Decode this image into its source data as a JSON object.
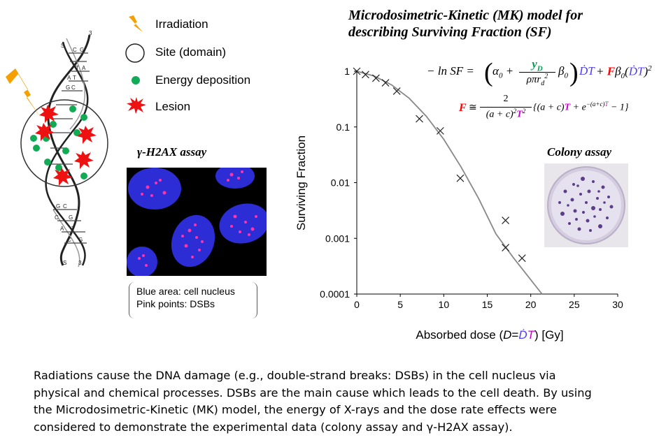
{
  "legend": {
    "items": [
      {
        "label": "Irradiation",
        "icon": "lightning-bolt-icon"
      },
      {
        "label": "Site (domain)",
        "icon": "circle-icon"
      },
      {
        "label": "Energy deposition",
        "icon": "green-dot-icon"
      },
      {
        "label": "Lesion",
        "icon": "red-star-icon"
      }
    ]
  },
  "dna": {
    "strand_labels": [
      "S",
      "3",
      "S",
      "3"
    ],
    "bases_top": [
      "C",
      "G",
      "T",
      "A",
      "A",
      "T",
      "G",
      "C"
    ],
    "bases_bottom": [
      "G",
      "C",
      "C",
      "G",
      "A",
      "T",
      "C",
      "G"
    ]
  },
  "h2ax": {
    "title": "γ-H2AX assay",
    "note_line1": "Blue area: cell nucleus",
    "note_line2": "Pink points: DSBs"
  },
  "model": {
    "title_line1": "Microdosimetric-Kinetic (MK) model for",
    "title_line2": "describing Surviving Fraction (SF)"
  },
  "colony": {
    "title": "Colony assay"
  },
  "colors": {
    "lesion": "#ee1111",
    "energy": "#11aa55",
    "bolt": "#f5a000",
    "curve": "#888888",
    "nucleus": "#2d2dd6",
    "dsb": "#ff33aa",
    "formula_yd": "#00a050",
    "formula_F": "#ff0000",
    "formula_dT": "#4f3ff0",
    "formula_T": "#cc00cc"
  },
  "chart_data": {
    "type": "scatter",
    "xlabel": "Absorbed dose (D=ḊT) [Gy]",
    "ylabel": "Surviving Fraction",
    "xlim": [
      0,
      30
    ],
    "ylim": [
      0.0001,
      1
    ],
    "yscale": "log",
    "x_ticks": [
      "0",
      "5",
      "10",
      "15",
      "20",
      "25",
      "30"
    ],
    "y_ticks": [
      "1",
      "0.1",
      "0.01",
      "0.001",
      "0.0001"
    ],
    "series": [
      {
        "marker": "x",
        "points": [
          {
            "x": 0,
            "y": 1
          },
          {
            "x": 1.0,
            "y": 0.87
          },
          {
            "x": 2.2,
            "y": 0.75
          },
          {
            "x": 3.3,
            "y": 0.62
          },
          {
            "x": 4.6,
            "y": 0.44
          },
          {
            "x": 7.2,
            "y": 0.14
          },
          {
            "x": 9.6,
            "y": 0.085
          },
          {
            "x": 11.9,
            "y": 0.012
          },
          {
            "x": 17.1,
            "y": 0.0021
          },
          {
            "x": 17.1,
            "y": 0.00068
          },
          {
            "x": 19.0,
            "y": 0.00044
          }
        ]
      },
      {
        "line": true,
        "points": [
          {
            "x": 0,
            "y": 1
          },
          {
            "x": 2,
            "y": 0.82
          },
          {
            "x": 4,
            "y": 0.57
          },
          {
            "x": 6,
            "y": 0.33
          },
          {
            "x": 8,
            "y": 0.155
          },
          {
            "x": 10,
            "y": 0.06
          },
          {
            "x": 12,
            "y": 0.019
          },
          {
            "x": 14,
            "y": 0.0052
          },
          {
            "x": 16,
            "y": 0.0012
          },
          {
            "x": 18,
            "y": 0.00045
          },
          {
            "x": 20,
            "y": 0.00018
          },
          {
            "x": 21.3,
            "y": 0.0001
          }
        ]
      }
    ]
  },
  "caption": {
    "line1": "Radiations cause the DNA damage (e.g., double-strand breaks: DSBs) in the cell nucleus via",
    "line2": "physical and chemical processes. DSBs are the main cause which leads to the cell death. By using",
    "line3": "the Microdosimetric-Kinetic (MK) model, the energy of X-rays and the dose rate effects were",
    "line4": "considered to demonstrate the experimental data (colony assay and γ-H2AX assay)."
  }
}
